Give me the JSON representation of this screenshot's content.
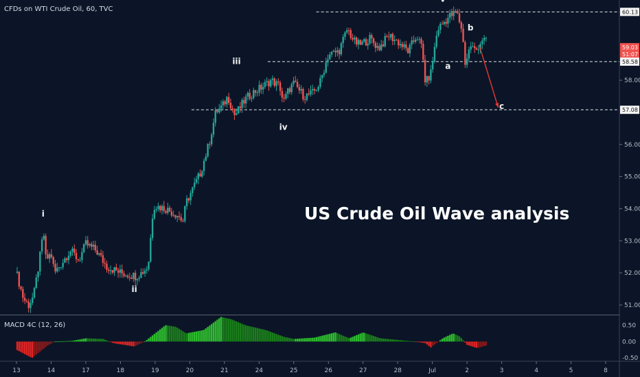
{
  "header": {
    "symbol_title": "CFDs on WTI Crude Oil, 60, TVC"
  },
  "title": "US Crude Oil Wave analysis",
  "colors": {
    "background": "#0b1527",
    "up": "#26a69a",
    "down": "#ef5350",
    "macd_up": "#2ebd2e",
    "macd_down": "#e02525",
    "price_badge": "#ef5350"
  },
  "chart_data": {
    "type": "candlestick",
    "title": "US Crude Oil Wave analysis",
    "price_ylim": [
      50.7,
      60.5
    ],
    "price_ticks": [
      "51.00",
      "52.00",
      "53.00",
      "54.00",
      "55.00",
      "56.00",
      "58.00"
    ],
    "x_ticks": [
      "13",
      "14",
      "17",
      "18",
      "19",
      "20",
      "21",
      "24",
      "25",
      "26",
      "27",
      "28",
      "Jul",
      "2",
      "3",
      "4",
      "5",
      "8"
    ],
    "x_domain": [
      0,
      17.2
    ],
    "price_path": [
      [
        0.0,
        52.0
      ],
      [
        0.2,
        51.2
      ],
      [
        0.35,
        51.0
      ],
      [
        0.5,
        51.3
      ],
      [
        0.65,
        52.3
      ],
      [
        0.78,
        53.3
      ],
      [
        0.85,
        52.4
      ],
      [
        1.0,
        52.6
      ],
      [
        1.1,
        52.0
      ],
      [
        1.3,
        52.3
      ],
      [
        1.55,
        52.7
      ],
      [
        1.8,
        52.4
      ],
      [
        2.0,
        52.9
      ],
      [
        2.3,
        52.7
      ],
      [
        2.6,
        52.2
      ],
      [
        3.0,
        52.0
      ],
      [
        3.45,
        51.9
      ],
      [
        3.6,
        52.0
      ],
      [
        3.8,
        52.2
      ],
      [
        3.95,
        54.1
      ],
      [
        4.3,
        54.0
      ],
      [
        4.65,
        53.8
      ],
      [
        4.8,
        53.6
      ],
      [
        4.9,
        54.2
      ],
      [
        5.3,
        55.1
      ],
      [
        5.55,
        56.0
      ],
      [
        5.75,
        57.0
      ],
      [
        5.95,
        57.2
      ],
      [
        6.1,
        57.5
      ],
      [
        6.3,
        56.9
      ],
      [
        6.6,
        57.4
      ],
      [
        6.8,
        57.6
      ],
      [
        7.1,
        57.8
      ],
      [
        7.35,
        58.0
      ],
      [
        7.6,
        57.8
      ],
      [
        7.7,
        57.3
      ],
      [
        7.85,
        57.7
      ],
      [
        8.0,
        57.9
      ],
      [
        8.3,
        57.5
      ],
      [
        8.55,
        57.6
      ],
      [
        8.75,
        57.9
      ],
      [
        9.0,
        58.8
      ],
      [
        9.3,
        58.9
      ],
      [
        9.55,
        59.6
      ],
      [
        9.75,
        59.2
      ],
      [
        9.9,
        59.1
      ],
      [
        10.2,
        59.3
      ],
      [
        10.45,
        59.0
      ],
      [
        10.75,
        59.4
      ],
      [
        11.0,
        59.2
      ],
      [
        11.3,
        58.9
      ],
      [
        11.55,
        59.4
      ],
      [
        11.7,
        59.0
      ],
      [
        11.8,
        57.9
      ],
      [
        11.95,
        58.2
      ],
      [
        12.15,
        59.6
      ],
      [
        12.5,
        60.0
      ],
      [
        12.7,
        60.1
      ],
      [
        12.85,
        59.6
      ],
      [
        12.95,
        58.5
      ],
      [
        13.1,
        59.1
      ],
      [
        13.25,
        58.9
      ],
      [
        13.45,
        59.3
      ],
      [
        13.55,
        59.2
      ]
    ],
    "price_labels": [
      {
        "value": 60.13,
        "text": "60.13",
        "style": "line"
      },
      {
        "value": 59.03,
        "text": "59.03",
        "style": "badge"
      },
      {
        "value": 58.81,
        "text": "51:07",
        "style": "badge"
      },
      {
        "value": 58.58,
        "text": "58.58",
        "style": "line"
      },
      {
        "value": 57.08,
        "text": "57.08",
        "style": "line"
      }
    ],
    "horizontal_lines": [
      {
        "value": 60.13,
        "x_from": 8.65
      },
      {
        "value": 58.58,
        "x_from": 7.25
      },
      {
        "value": 57.08,
        "x_from": 5.05
      }
    ],
    "wave_labels": [
      {
        "text": "i",
        "x": 0.77,
        "y": 53.75
      },
      {
        "text": "ii",
        "x": 3.4,
        "y": 51.4
      },
      {
        "text": "iii",
        "x": 6.35,
        "y": 58.5
      },
      {
        "text": "iv",
        "x": 7.7,
        "y": 56.45
      },
      {
        "text": "v",
        "x": 12.3,
        "y": 60.45
      },
      {
        "text": "a",
        "x": 12.45,
        "y": 58.35
      },
      {
        "text": "b",
        "x": 13.1,
        "y": 59.55
      },
      {
        "text": "c",
        "x": 14.0,
        "y": 57.1
      }
    ],
    "projection_arrow": {
      "from": [
        13.35,
        59.1
      ],
      "to": [
        13.9,
        57.15
      ]
    },
    "macd": {
      "label": "MACD 4C (12, 26)",
      "ylim": [
        -0.6,
        0.8
      ],
      "ticks": [
        "0.50",
        "0.00",
        "-0.50"
      ],
      "path": [
        [
          0.0,
          -0.25
        ],
        [
          0.45,
          -0.5
        ],
        [
          0.9,
          -0.12
        ],
        [
          1.1,
          0.0
        ],
        [
          1.6,
          0.02
        ],
        [
          2.0,
          0.1
        ],
        [
          2.5,
          0.08
        ],
        [
          2.8,
          -0.05
        ],
        [
          3.1,
          -0.1
        ],
        [
          3.4,
          -0.15
        ],
        [
          3.6,
          -0.05
        ],
        [
          3.7,
          0.0
        ],
        [
          4.3,
          0.5
        ],
        [
          4.6,
          0.45
        ],
        [
          4.9,
          0.25
        ],
        [
          5.4,
          0.35
        ],
        [
          5.9,
          0.75
        ],
        [
          6.2,
          0.68
        ],
        [
          6.6,
          0.5
        ],
        [
          7.2,
          0.35
        ],
        [
          7.7,
          0.15
        ],
        [
          8.0,
          0.08
        ],
        [
          8.6,
          0.12
        ],
        [
          9.2,
          0.28
        ],
        [
          9.6,
          0.1
        ],
        [
          10.0,
          0.28
        ],
        [
          10.5,
          0.1
        ],
        [
          11.0,
          0.05
        ],
        [
          11.5,
          0.0
        ],
        [
          11.8,
          -0.05
        ],
        [
          11.95,
          -0.18
        ],
        [
          12.3,
          0.1
        ],
        [
          12.6,
          0.25
        ],
        [
          12.8,
          0.15
        ],
        [
          13.0,
          -0.1
        ],
        [
          13.3,
          -0.2
        ],
        [
          13.55,
          -0.12
        ]
      ]
    }
  }
}
